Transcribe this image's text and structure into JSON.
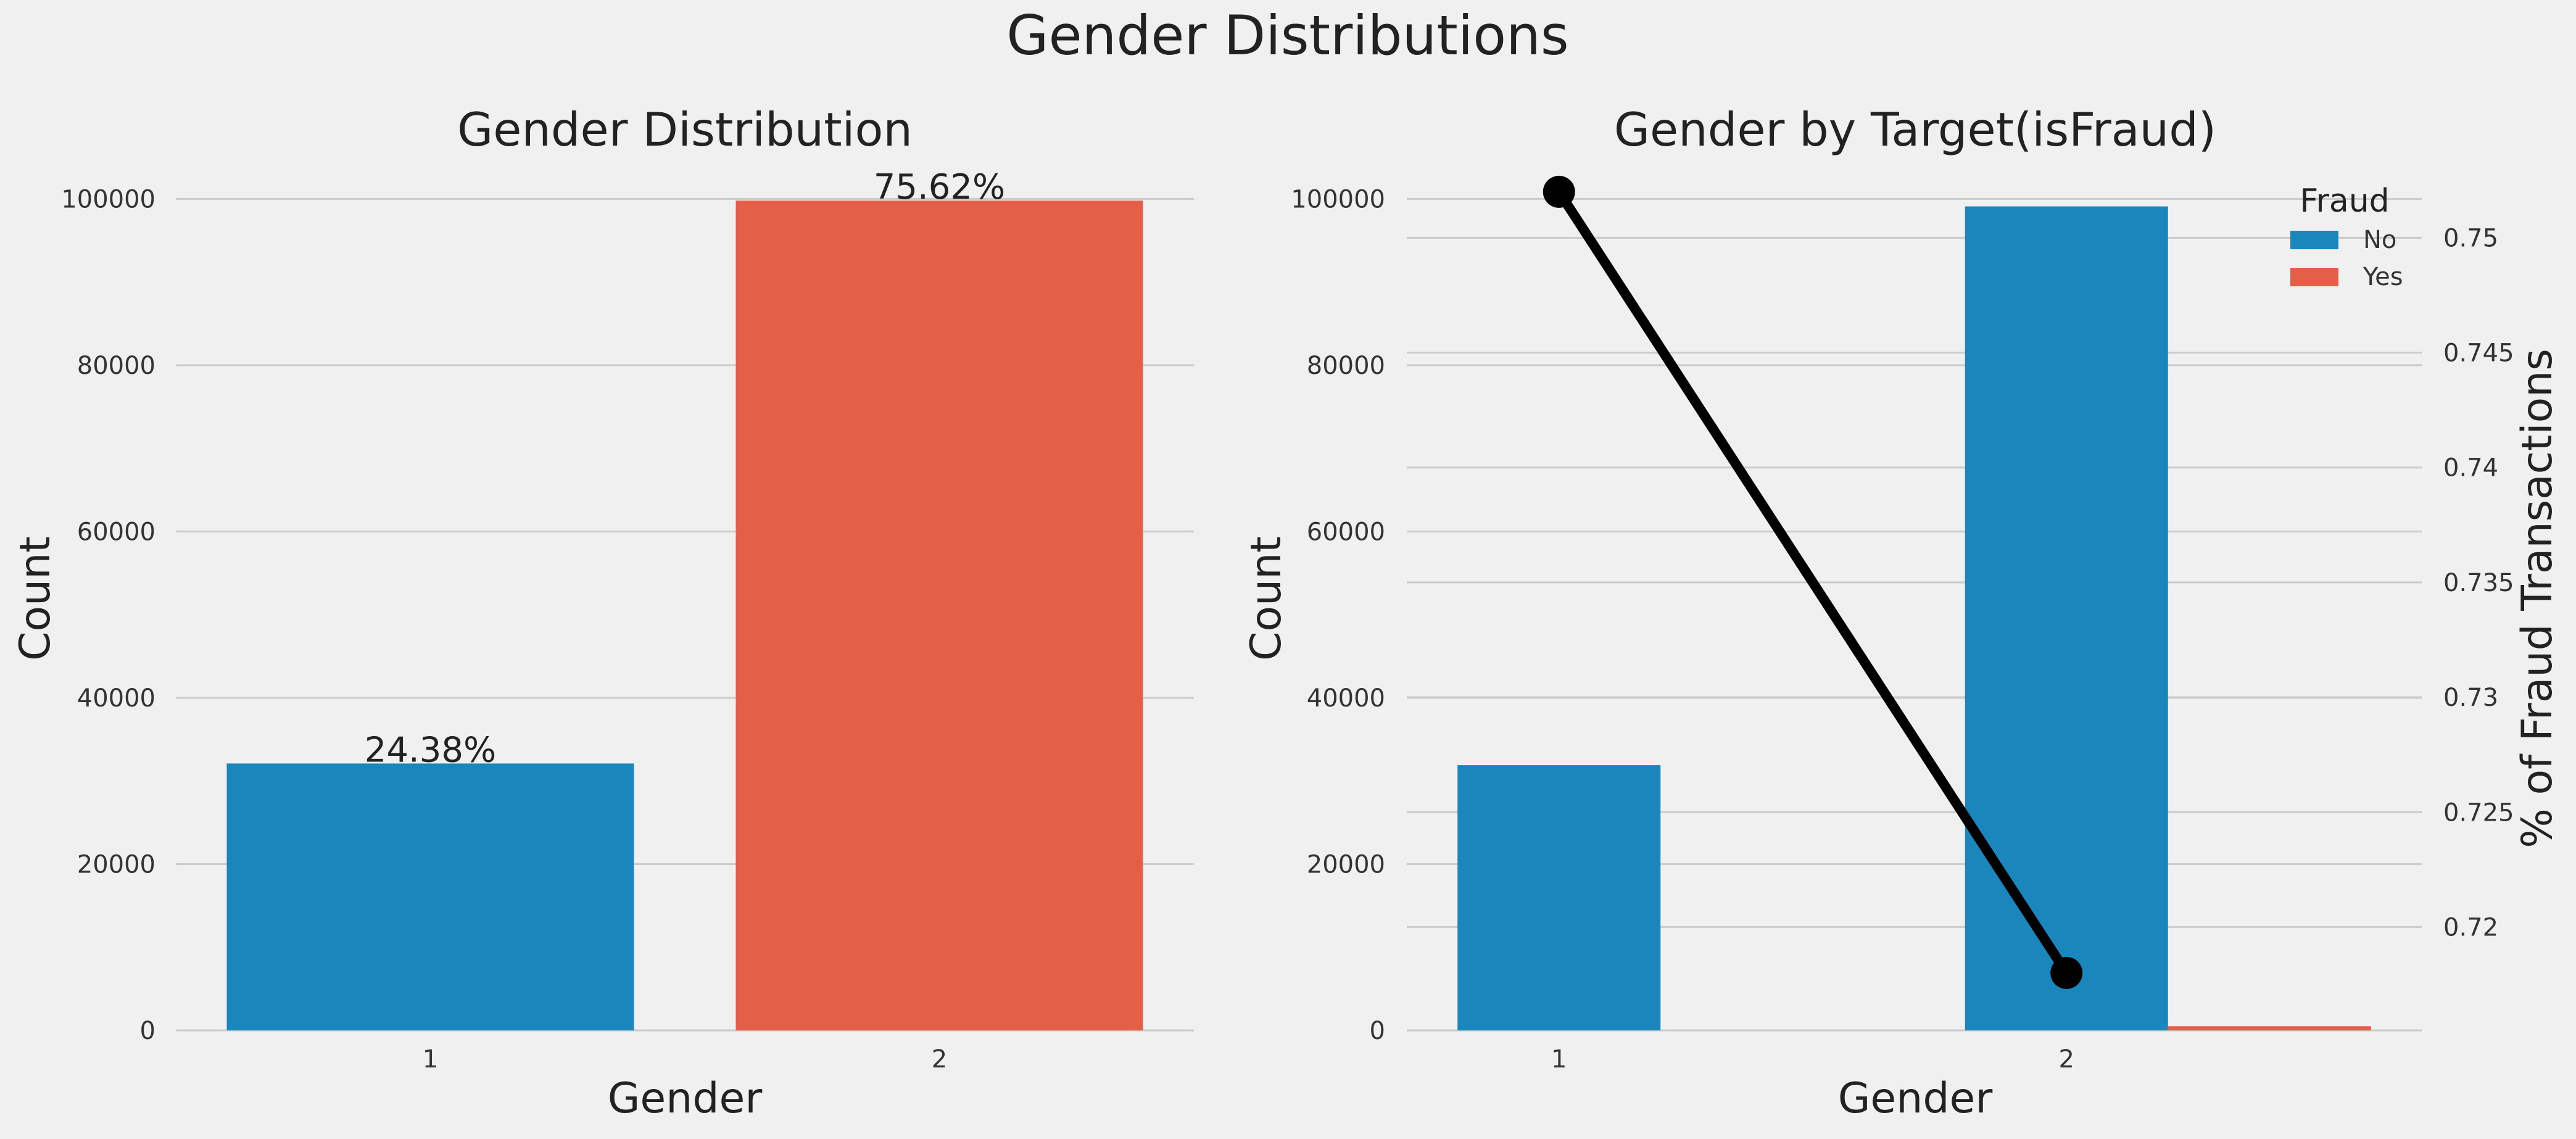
{
  "figure": {
    "suptitle": "Gender Distributions"
  },
  "colors": {
    "blue": "#1a86bb",
    "red": "#e45f48",
    "line": "#000000",
    "grid": "#cbcbcb",
    "background": "#f0f0f0"
  },
  "chart_data": [
    {
      "type": "bar",
      "title": "Gender Distribution",
      "xlabel": "Gender",
      "ylabel": "Count",
      "categories": [
        "1",
        "2"
      ],
      "values": [
        32100,
        99800
      ],
      "bar_colors": [
        "#1a86bb",
        "#e45f48"
      ],
      "data_labels": [
        "24.38%",
        "75.62%"
      ],
      "ylim": [
        0,
        105000
      ],
      "yticks": [
        0,
        20000,
        40000,
        60000,
        80000,
        100000
      ],
      "grid": true
    },
    {
      "type": "bar",
      "title": "Gender by Target(isFraud)",
      "xlabel": "Gender",
      "ylabel": "Count",
      "y2label": "% of Fraud Transactions",
      "categories": [
        "1",
        "2"
      ],
      "series": [
        {
          "name": "No",
          "color": "#1a86bb",
          "values": [
            31900,
            99100
          ]
        },
        {
          "name": "Yes",
          "color": "#e45f48",
          "values": [
            0,
            500
          ]
        }
      ],
      "line": {
        "values": [
          0.752,
          0.718
        ],
        "color": "#000000"
      },
      "ylim": [
        0,
        105000
      ],
      "yticks": [
        0,
        20000,
        40000,
        60000,
        80000,
        100000
      ],
      "y2lim": [
        0.7155,
        0.7535
      ],
      "y2ticks": [
        0.72,
        0.725,
        0.73,
        0.735,
        0.74,
        0.745,
        0.75
      ],
      "legend": {
        "title": "Fraud",
        "position": "top-right"
      },
      "grid": true
    }
  ]
}
